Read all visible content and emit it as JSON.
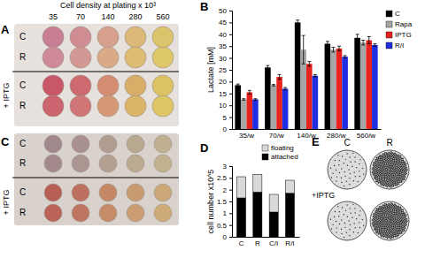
{
  "chart_data": [
    {
      "type": "bar",
      "annotations": [
        "B"
      ],
      "y_label": "Lactate [mM]",
      "categories": [
        "35/w",
        "70/w",
        "140/w",
        "280/w",
        "560/w"
      ],
      "series": [
        {
          "name": "C",
          "color": "#000000",
          "values": [
            18.5,
            26,
            45,
            36,
            38.5
          ],
          "errors": [
            0.5,
            0.8,
            1,
            1,
            1.5
          ]
        },
        {
          "name": "Rapa",
          "color": "#a6a6a6",
          "values": [
            12.5,
            18.5,
            33.5,
            33.5,
            36.5
          ],
          "errors": [
            0.3,
            0.3,
            6,
            1,
            1
          ]
        },
        {
          "name": "IPTG",
          "color": "#e8231f",
          "values": [
            15.5,
            22,
            27.5,
            34,
            37.5
          ],
          "errors": [
            0.8,
            1,
            1,
            1,
            1.5
          ]
        },
        {
          "name": "R/I",
          "color": "#1f2ee0",
          "values": [
            12.5,
            17,
            22.5,
            30.5,
            35.5
          ],
          "errors": [
            0.3,
            0.5,
            0.5,
            0.5,
            0.5
          ]
        }
      ],
      "ylim": [
        0,
        50
      ],
      "yticks": [
        0,
        5,
        10,
        15,
        20,
        25,
        30,
        35,
        40,
        45,
        50
      ],
      "legend": "upper right"
    },
    {
      "type": "bar",
      "stacked": true,
      "annotations": [
        "D"
      ],
      "y_label": "cell number x10^5",
      "categories": [
        "C",
        "R",
        "C/I",
        "R/I"
      ],
      "series": [
        {
          "name": "attached",
          "color": "#000000",
          "values": [
            1.65,
            1.9,
            1.05,
            1.85
          ]
        },
        {
          "name": "floating",
          "color": "#d9d9d9",
          "values": [
            0.9,
            0.75,
            0.75,
            0.55
          ]
        }
      ],
      "ylim": [
        0,
        3
      ],
      "yticks": [
        0,
        0.5,
        1,
        1.5,
        2,
        2.5,
        3
      ],
      "legend": "upper right"
    }
  ],
  "panels": {
    "A": {
      "label": "A",
      "header": "Cell density at plating x 10³",
      "densities": [
        35,
        70,
        140,
        280,
        560
      ],
      "rows": [
        "C",
        "R"
      ],
      "lower_rows": [
        "C",
        "R"
      ],
      "treatment": "+ IPTG"
    },
    "C": {
      "label": "C",
      "rows": [
        "C",
        "R"
      ],
      "lower_rows": [
        "C",
        "R"
      ],
      "treatment": "+ IPTG"
    },
    "E": {
      "label": "E",
      "columns": [
        "C",
        "R"
      ],
      "treatment": "+IPTG"
    }
  }
}
